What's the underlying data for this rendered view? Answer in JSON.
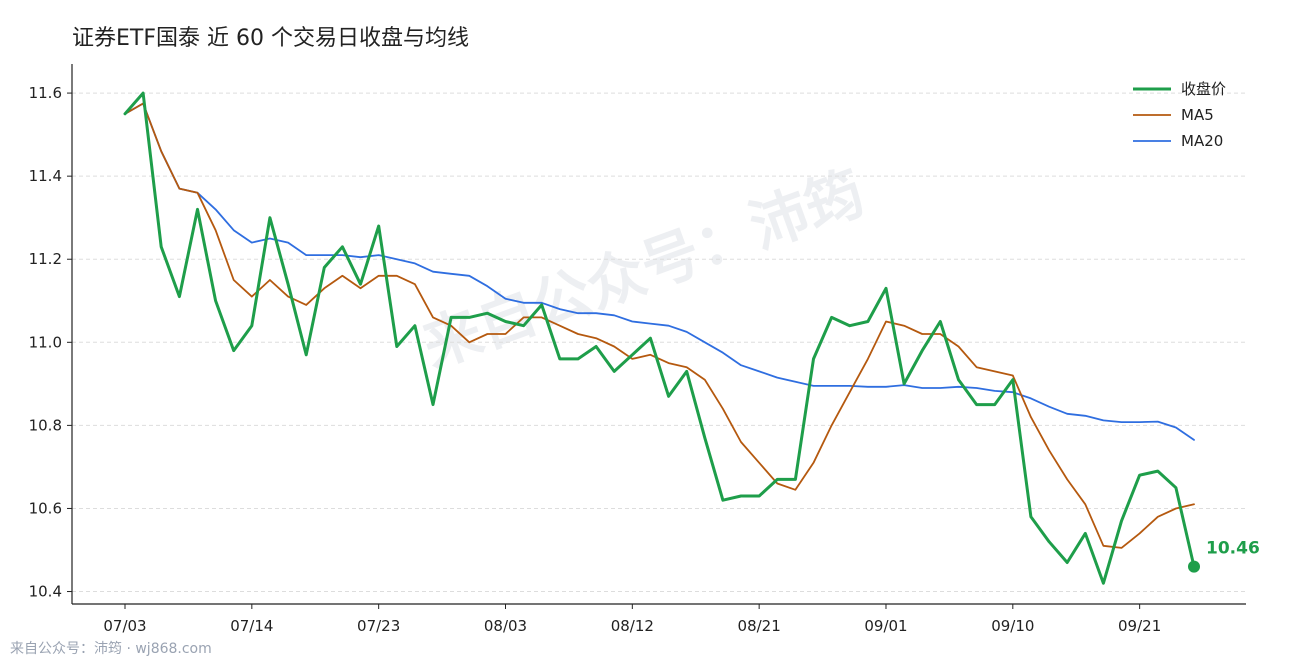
{
  "title": "证券ETF国泰 近 60 个交易日收盘与均线",
  "footer": "来自公众号：沛筠 · wj868.com",
  "watermark": "来自公众号：沛筠",
  "colors": {
    "close": "#1e9e4a",
    "ma5": "#b5590f",
    "ma20": "#2f6ee0",
    "grid": "#dddddd",
    "axis": "#222222"
  },
  "chart_data": {
    "type": "line",
    "title": "证券ETF国泰 近 60 个交易日收盘与均线",
    "xlabel": "",
    "ylabel": "",
    "ylim": [
      10.37,
      11.67
    ],
    "yticks": [
      10.4,
      10.6,
      10.8,
      11.0,
      11.2,
      11.4,
      11.6
    ],
    "ytick_labels": [
      "10.4",
      "10.6",
      "10.8",
      "11.0",
      "11.2",
      "11.4",
      "11.6"
    ],
    "xticks": [
      0,
      7,
      14,
      21,
      28,
      35,
      42,
      49,
      56
    ],
    "xtick_labels": [
      "07/03",
      "07/14",
      "07/23",
      "08/03",
      "08/12",
      "08/21",
      "09/01",
      "09/10",
      "09/21"
    ],
    "grid": "horizontal dashed",
    "legend": "top-right",
    "last_value_label": "10.46",
    "series": [
      {
        "name": "收盘价",
        "values": [
          11.55,
          11.6,
          11.23,
          11.11,
          11.32,
          11.1,
          10.98,
          11.04,
          11.3,
          11.14,
          10.97,
          11.18,
          11.23,
          11.14,
          11.28,
          10.99,
          11.04,
          10.85,
          11.06,
          11.06,
          11.07,
          11.05,
          11.04,
          11.09,
          10.96,
          10.96,
          10.99,
          10.93,
          10.97,
          11.01,
          10.87,
          10.93,
          10.77,
          10.62,
          10.63,
          10.63,
          10.67,
          10.67,
          10.96,
          11.06,
          11.04,
          11.05,
          11.13,
          10.9,
          10.98,
          11.05,
          10.91,
          10.85,
          10.85,
          10.91,
          10.58,
          10.52,
          10.47,
          10.54,
          10.42,
          10.57,
          10.68,
          10.69,
          10.65,
          10.46
        ]
      },
      {
        "name": "MA5",
        "values": [
          11.55,
          11.575,
          11.46,
          11.37,
          11.36,
          11.27,
          11.15,
          11.11,
          11.15,
          11.11,
          11.09,
          11.13,
          11.16,
          11.13,
          11.16,
          11.16,
          11.14,
          11.06,
          11.04,
          11.0,
          11.02,
          11.02,
          11.06,
          11.06,
          11.04,
          11.02,
          11.01,
          10.99,
          10.96,
          10.97,
          10.95,
          10.94,
          10.91,
          10.84,
          10.76,
          10.71,
          10.66,
          10.645,
          10.71,
          10.8,
          10.88,
          10.96,
          11.05,
          11.04,
          11.02,
          11.02,
          10.99,
          10.94,
          10.93,
          10.92,
          10.82,
          10.74,
          10.67,
          10.61,
          10.51,
          10.505,
          10.54,
          10.58,
          10.6,
          10.61
        ]
      },
      {
        "name": "MA20",
        "values": [
          11.55,
          11.575,
          11.46,
          11.37,
          11.36,
          11.32,
          11.27,
          11.24,
          11.25,
          11.24,
          11.21,
          11.21,
          11.21,
          11.205,
          11.21,
          11.2,
          11.19,
          11.17,
          11.165,
          11.16,
          11.135,
          11.105,
          11.095,
          11.095,
          11.08,
          11.07,
          11.07,
          11.065,
          11.05,
          11.045,
          11.04,
          11.025,
          11.0,
          10.975,
          10.945,
          10.93,
          10.915,
          10.905,
          10.895,
          10.895,
          10.895,
          10.893,
          10.893,
          10.897,
          10.89,
          10.89,
          10.893,
          10.89,
          10.883,
          10.88,
          10.865,
          10.845,
          10.828,
          10.823,
          10.812,
          10.808,
          10.808,
          10.809,
          10.795,
          10.765
        ]
      }
    ]
  }
}
